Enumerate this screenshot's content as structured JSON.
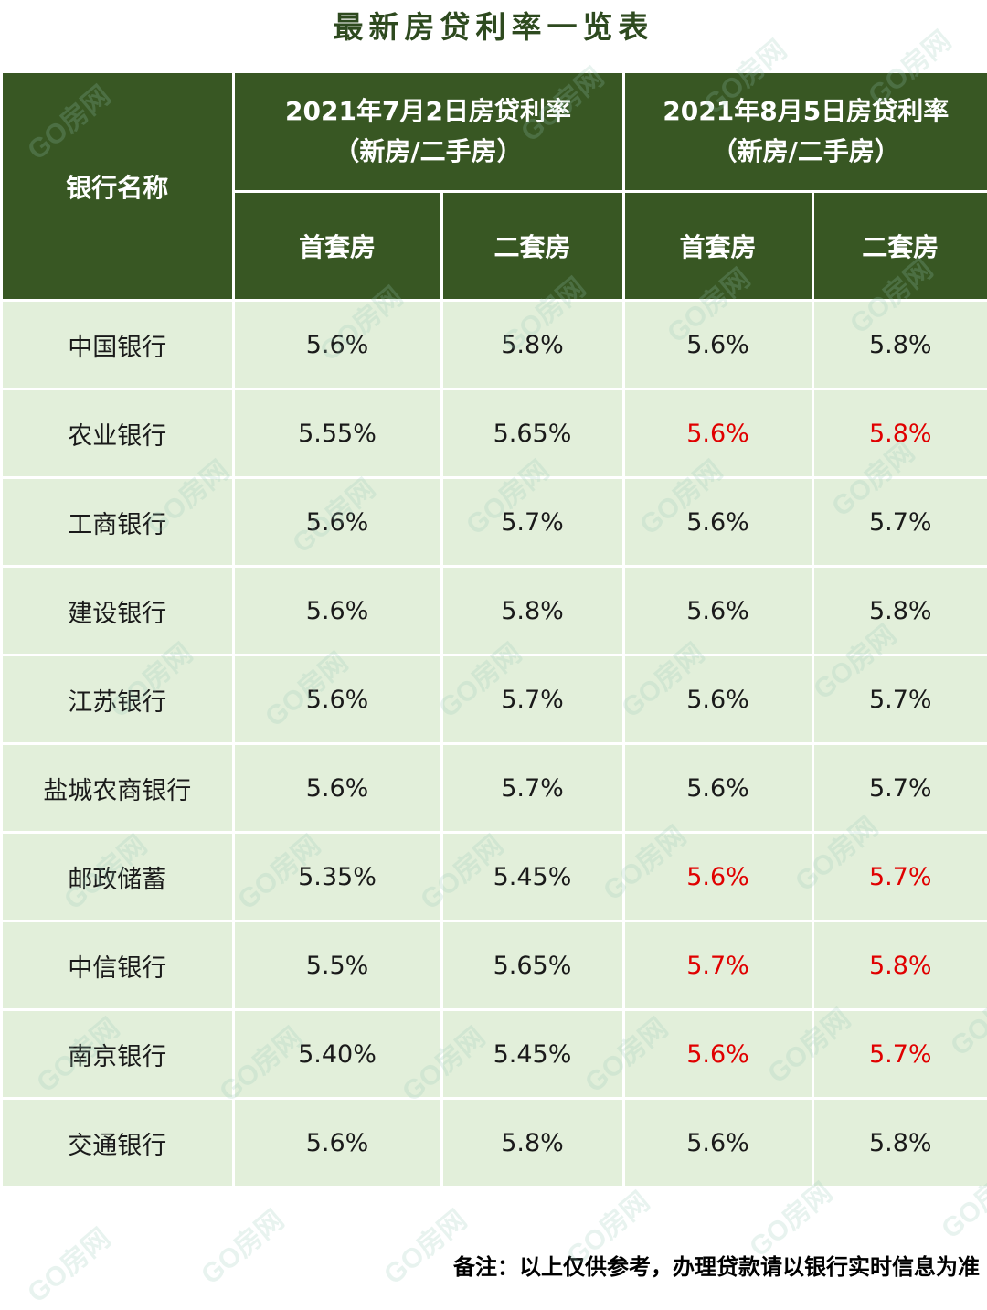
{
  "title": "最新房贷利率一览表",
  "table": {
    "bank_header": "银行名称",
    "groups": [
      {
        "line1": "2021年7月2日房贷利率",
        "line2": "（新房/二手房）"
      },
      {
        "line1": "2021年8月5日房贷利率",
        "line2": "（新房/二手房）"
      }
    ],
    "sub_headers": [
      "首套房",
      "二套房",
      "首套房",
      "二套房"
    ],
    "rows": [
      {
        "bank": "中国银行",
        "values": [
          "5.6%",
          "5.8%",
          "5.6%",
          "5.8%"
        ],
        "changed": [
          false,
          false
        ]
      },
      {
        "bank": "农业银行",
        "values": [
          "5.55%",
          "5.65%",
          "5.6%",
          "5.8%"
        ],
        "changed": [
          true,
          true
        ]
      },
      {
        "bank": "工商银行",
        "values": [
          "5.6%",
          "5.7%",
          "5.6%",
          "5.7%"
        ],
        "changed": [
          false,
          false
        ]
      },
      {
        "bank": "建设银行",
        "values": [
          "5.6%",
          "5.8%",
          "5.6%",
          "5.8%"
        ],
        "changed": [
          false,
          false
        ]
      },
      {
        "bank": "江苏银行",
        "values": [
          "5.6%",
          "5.7%",
          "5.6%",
          "5.7%"
        ],
        "changed": [
          false,
          false
        ]
      },
      {
        "bank": "盐城农商银行",
        "values": [
          "5.6%",
          "5.7%",
          "5.6%",
          "5.7%"
        ],
        "changed": [
          false,
          false
        ]
      },
      {
        "bank": "邮政储蓄",
        "values": [
          "5.35%",
          "5.45%",
          "5.6%",
          "5.7%"
        ],
        "changed": [
          true,
          true
        ]
      },
      {
        "bank": "中信银行",
        "values": [
          "5.5%",
          "5.65%",
          "5.7%",
          "5.8%"
        ],
        "changed": [
          true,
          true
        ]
      },
      {
        "bank": "南京银行",
        "values": [
          "5.40%",
          "5.45%",
          "5.6%",
          "5.7%"
        ],
        "changed": [
          true,
          true
        ]
      },
      {
        "bank": "交通银行",
        "values": [
          "5.6%",
          "5.8%",
          "5.6%",
          "5.8%"
        ],
        "changed": [
          false,
          false
        ]
      }
    ]
  },
  "note": "备注：以上仅供参考，办理贷款请以银行实时信息为准",
  "watermark": "GO房网",
  "colors": {
    "header_bg": "#385723",
    "row_bg": "#e2efda",
    "title": "#2e4a1f",
    "changed_value": "#e00000"
  }
}
